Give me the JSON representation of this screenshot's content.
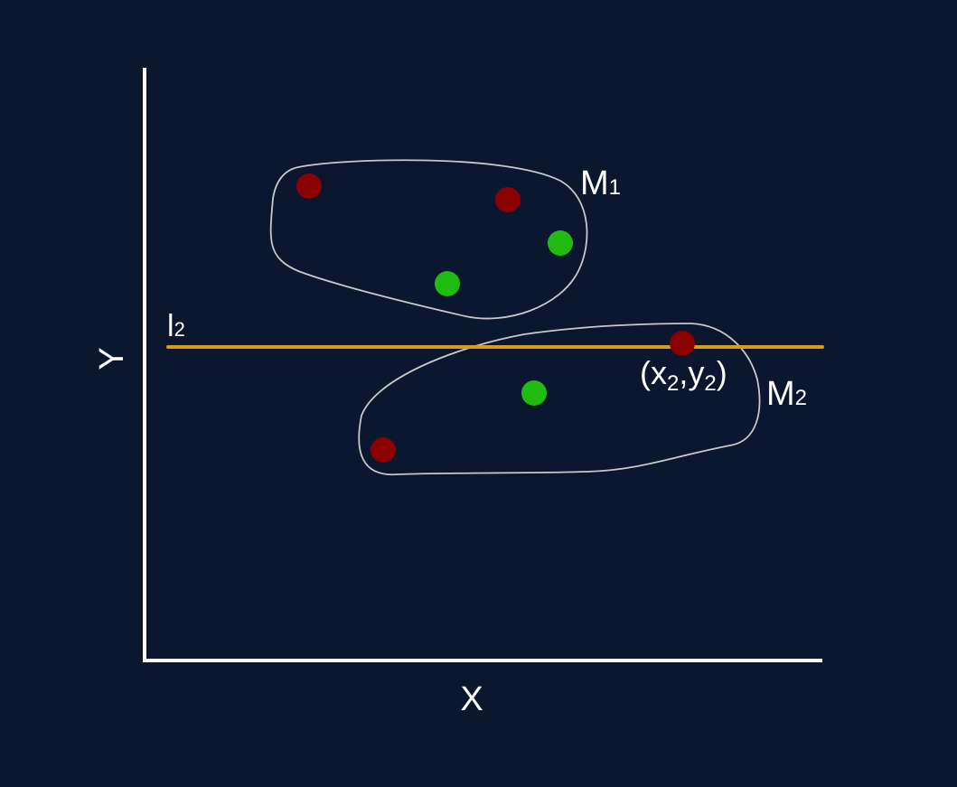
{
  "colors": {
    "background": "#0b172e",
    "axis": "#ffffff",
    "boundary": "#c8c8c8",
    "line": "#d79e1a",
    "red_point": "#8b0000",
    "green_point": "#1fbb10",
    "text": "#ffffff"
  },
  "axes": {
    "x_label": "X",
    "y_label": "Y"
  },
  "line": {
    "name": "l",
    "subscript": "2"
  },
  "point_label": {
    "open": "(x",
    "x_sub": "2",
    "sep": ",y",
    "y_sub": "2",
    "close": ")"
  },
  "clusters": [
    {
      "name": "M",
      "subscript": "1",
      "points": [
        {
          "color": "red"
        },
        {
          "color": "red"
        },
        {
          "color": "green"
        },
        {
          "color": "green"
        }
      ]
    },
    {
      "name": "M",
      "subscript": "2",
      "points": [
        {
          "color": "red"
        },
        {
          "color": "green"
        },
        {
          "color": "red"
        }
      ]
    }
  ]
}
